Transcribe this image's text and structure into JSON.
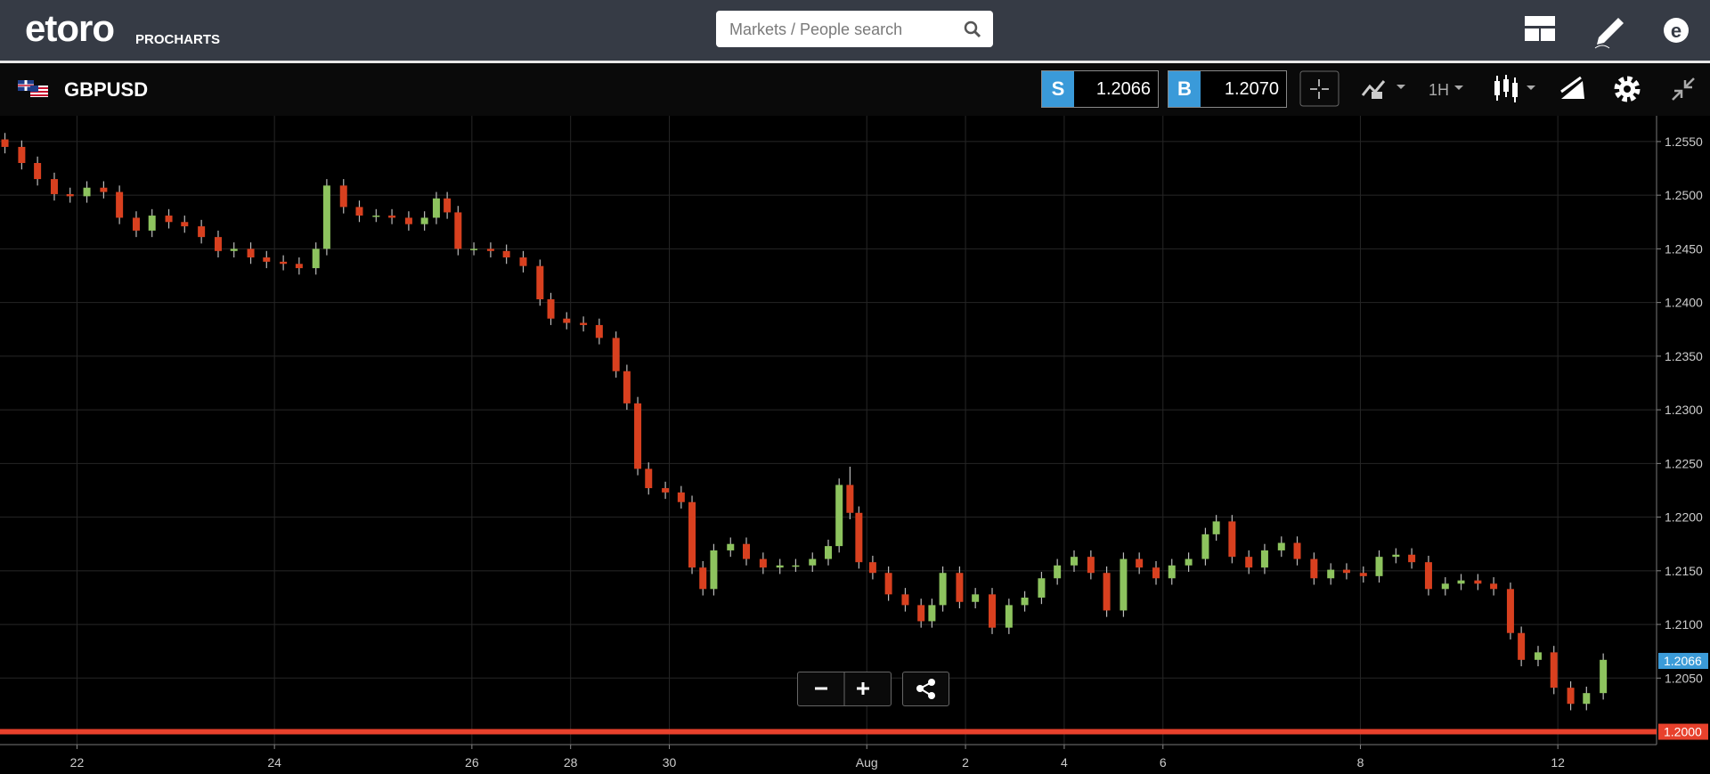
{
  "header": {
    "logo": "etoro",
    "logo_sub": "PROCHARTS",
    "search_placeholder": "Markets / People search"
  },
  "toolbar": {
    "symbol": "GBPUSD",
    "sell_label": "S",
    "sell_price": "1.2066",
    "buy_label": "B",
    "buy_price": "1.2070",
    "timeframe": "1H"
  },
  "chart_data": {
    "type": "candlestick",
    "up_color": "#8dc35e",
    "down_color": "#d8401f",
    "grid": true,
    "x": [
      -0.73,
      -0.56,
      -0.4,
      -0.23,
      -0.07,
      0.1,
      0.27,
      0.43,
      0.6,
      0.76,
      0.93,
      1.09,
      1.26,
      1.43,
      1.59,
      1.76,
      1.92,
      2.09,
      2.25,
      2.42,
      2.53,
      2.7,
      2.86,
      3.03,
      3.19,
      3.36,
      3.52,
      3.64,
      3.75,
      3.86,
      4.02,
      4.19,
      4.35,
      4.52,
      4.69,
      4.8,
      4.96,
      5.13,
      5.29,
      5.46,
      5.57,
      5.68,
      5.79,
      5.96,
      6.12,
      6.23,
      6.34,
      6.45,
      6.62,
      6.78,
      6.95,
      7.12,
      7.28,
      7.45,
      7.61,
      7.72,
      7.83,
      7.92,
      8.06,
      8.22,
      8.39,
      8.55,
      8.66,
      8.77,
      8.94,
      9.1,
      9.27,
      9.44,
      9.6,
      9.77,
      9.93,
      10.1,
      10.27,
      10.43,
      10.6,
      10.76,
      10.93,
      11.09,
      11.26,
      11.43,
      11.54,
      11.7,
      11.87,
      12.03,
      12.2,
      12.36,
      12.53,
      12.7,
      12.86,
      13.03,
      13.19,
      13.36,
      13.52,
      13.69,
      13.86,
      14.02,
      14.19,
      14.35,
      14.52,
      14.63,
      14.8,
      14.96,
      15.13,
      15.29,
      15.46
    ],
    "open": [
      1.2552,
      1.2545,
      1.253,
      1.2515,
      1.2501,
      1.2499,
      1.2507,
      1.2503,
      1.2479,
      1.2467,
      1.2481,
      1.2475,
      1.2471,
      1.2461,
      1.2448,
      1.245,
      1.2442,
      1.2438,
      1.2436,
      1.2432,
      1.245,
      1.2509,
      1.2489,
      1.2481,
      1.2481,
      1.2479,
      1.2473,
      1.2479,
      1.2497,
      1.2484,
      1.245,
      1.245,
      1.2448,
      1.2442,
      1.2434,
      1.2403,
      1.2385,
      1.2381,
      1.2379,
      1.2367,
      1.2336,
      1.2306,
      1.2245,
      1.2227,
      1.2223,
      1.2214,
      1.2153,
      1.2133,
      1.2169,
      1.2175,
      1.2161,
      1.2153,
      1.2155,
      1.2155,
      1.2161,
      1.2173,
      1.223,
      1.2204,
      1.2158,
      1.2148,
      1.2128,
      1.2118,
      1.2103,
      1.2118,
      1.2148,
      1.2121,
      1.2128,
      1.2097,
      1.2118,
      1.2125,
      1.2143,
      1.2155,
      1.2163,
      1.2148,
      1.2113,
      1.2161,
      1.2153,
      1.2143,
      1.2155,
      1.2161,
      1.2184,
      1.2196,
      1.2163,
      1.2153,
      1.2169,
      1.2176,
      1.2161,
      1.2143,
      1.2151,
      1.2148,
      1.2145,
      1.2163,
      1.2165,
      1.2158,
      1.2133,
      1.2138,
      1.2141,
      1.2138,
      1.2133,
      1.2092,
      1.2067,
      1.2074,
      1.2041,
      1.2026,
      1.2036
    ],
    "high": [
      1.2558,
      1.2551,
      1.2536,
      1.2521,
      1.2507,
      1.2513,
      1.2513,
      1.2509,
      1.2485,
      1.2487,
      1.2487,
      1.2481,
      1.2477,
      1.2467,
      1.2456,
      1.2456,
      1.2448,
      1.2444,
      1.2442,
      1.2456,
      1.2515,
      1.2515,
      1.2495,
      1.2487,
      1.2487,
      1.2485,
      1.2485,
      1.2503,
      1.2503,
      1.249,
      1.2456,
      1.2456,
      1.2454,
      1.2448,
      1.244,
      1.2409,
      1.2391,
      1.2387,
      1.2385,
      1.2373,
      1.2342,
      1.2312,
      1.2251,
      1.2233,
      1.2229,
      1.222,
      1.2159,
      1.2175,
      1.2181,
      1.2181,
      1.2167,
      1.2161,
      1.2161,
      1.2167,
      1.2179,
      1.2236,
      1.2247,
      1.221,
      1.2164,
      1.2154,
      1.2134,
      1.2124,
      1.2124,
      1.2154,
      1.2154,
      1.2134,
      1.2134,
      1.2124,
      1.2131,
      1.2149,
      1.2161,
      1.2169,
      1.2169,
      1.2154,
      1.2167,
      1.2167,
      1.2159,
      1.2161,
      1.2167,
      1.219,
      1.2202,
      1.2202,
      1.2169,
      1.2175,
      1.2182,
      1.2182,
      1.2167,
      1.2157,
      1.2157,
      1.2154,
      1.2169,
      1.2171,
      1.2171,
      1.2164,
      1.2144,
      1.2147,
      1.2147,
      1.2144,
      1.2139,
      1.2098,
      1.208,
      1.208,
      1.2047,
      1.2042,
      1.2073
    ],
    "low": [
      1.2539,
      1.2524,
      1.2509,
      1.2495,
      1.2493,
      1.2493,
      1.2497,
      1.2473,
      1.2461,
      1.2461,
      1.2469,
      1.2465,
      1.2455,
      1.2442,
      1.2442,
      1.2436,
      1.2432,
      1.243,
      1.2426,
      1.2426,
      1.2444,
      1.2483,
      1.2475,
      1.2475,
      1.2473,
      1.2467,
      1.2467,
      1.2473,
      1.2478,
      1.2444,
      1.2444,
      1.2442,
      1.2436,
      1.2428,
      1.2397,
      1.2379,
      1.2375,
      1.2373,
      1.2361,
      1.233,
      1.23,
      1.2239,
      1.2221,
      1.2217,
      1.2208,
      1.2147,
      1.2127,
      1.2127,
      1.2163,
      1.2155,
      1.2147,
      1.2147,
      1.2149,
      1.2149,
      1.2155,
      1.2167,
      1.2198,
      1.2152,
      1.2142,
      1.2122,
      1.2112,
      1.2097,
      1.2097,
      1.2112,
      1.2115,
      1.2115,
      1.2091,
      1.2091,
      1.2112,
      1.2119,
      1.2137,
      1.2149,
      1.2142,
      1.2107,
      1.2107,
      1.2147,
      1.2137,
      1.2137,
      1.2149,
      1.2155,
      1.2178,
      1.2157,
      1.2147,
      1.2147,
      1.2163,
      1.2155,
      1.2137,
      1.2137,
      1.2142,
      1.2139,
      1.2139,
      1.2157,
      1.2152,
      1.2127,
      1.2127,
      1.2132,
      1.2132,
      1.2127,
      1.2086,
      1.2061,
      1.2061,
      1.2035,
      1.202,
      1.202,
      1.203
    ],
    "close": [
      1.2545,
      1.253,
      1.2515,
      1.2501,
      1.2499,
      1.2507,
      1.2503,
      1.2479,
      1.2467,
      1.2481,
      1.2475,
      1.2471,
      1.2461,
      1.2448,
      1.245,
      1.2442,
      1.2438,
      1.2436,
      1.2432,
      1.245,
      1.2509,
      1.2489,
      1.2481,
      1.2481,
      1.2479,
      1.2473,
      1.2479,
      1.2497,
      1.2484,
      1.245,
      1.245,
      1.2448,
      1.2442,
      1.2434,
      1.2403,
      1.2385,
      1.2381,
      1.2379,
      1.2367,
      1.2336,
      1.2306,
      1.2245,
      1.2227,
      1.2223,
      1.2214,
      1.2153,
      1.2133,
      1.2169,
      1.2175,
      1.2161,
      1.2153,
      1.2155,
      1.2155,
      1.2161,
      1.2173,
      1.223,
      1.2204,
      1.2158,
      1.2148,
      1.2128,
      1.2118,
      1.2103,
      1.2118,
      1.2148,
      1.2121,
      1.2128,
      1.2097,
      1.2118,
      1.2125,
      1.2143,
      1.2155,
      1.2163,
      1.2148,
      1.2113,
      1.2161,
      1.2153,
      1.2143,
      1.2155,
      1.2161,
      1.2184,
      1.2196,
      1.2163,
      1.2153,
      1.2169,
      1.2176,
      1.2161,
      1.2143,
      1.2151,
      1.2148,
      1.2145,
      1.2163,
      1.2165,
      1.2158,
      1.2133,
      1.2138,
      1.2141,
      1.2138,
      1.2133,
      1.2092,
      1.2067,
      1.2074,
      1.2041,
      1.2026,
      1.2036,
      1.2067
    ],
    "xlim": [
      -0.78,
      16.0
    ],
    "xticks": [
      {
        "value": 0,
        "label": "22"
      },
      {
        "value": 2,
        "label": "24"
      },
      {
        "value": 4,
        "label": "26"
      },
      {
        "value": 5,
        "label": "28"
      },
      {
        "value": 6,
        "label": "30"
      },
      {
        "value": 8,
        "label": "Aug"
      },
      {
        "value": 9,
        "label": "2"
      },
      {
        "value": 10,
        "label": "4"
      },
      {
        "value": 11,
        "label": "6"
      },
      {
        "value": 13,
        "label": "8"
      },
      {
        "value": 15,
        "label": "12"
      }
    ],
    "ylim": [
      1.1988,
      1.2574
    ],
    "yticks": [
      {
        "value": 1.205,
        "label": "1.2050"
      },
      {
        "value": 1.21,
        "label": "1.2100"
      },
      {
        "value": 1.215,
        "label": "1.2150"
      },
      {
        "value": 1.22,
        "label": "1.2200"
      },
      {
        "value": 1.225,
        "label": "1.2250"
      },
      {
        "value": 1.23,
        "label": "1.2300"
      },
      {
        "value": 1.235,
        "label": "1.2350"
      },
      {
        "value": 1.24,
        "label": "1.2400"
      },
      {
        "value": 1.245,
        "label": "1.2450"
      },
      {
        "value": 1.25,
        "label": "1.2500"
      },
      {
        "value": 1.255,
        "label": "1.2550"
      }
    ],
    "markers": [
      {
        "value": 1.2066,
        "label": "1.2066",
        "color": "#3b9bd8",
        "line": false
      },
      {
        "value": 1.2,
        "label": "1.2000",
        "color": "#e8412c",
        "line": true
      }
    ]
  }
}
